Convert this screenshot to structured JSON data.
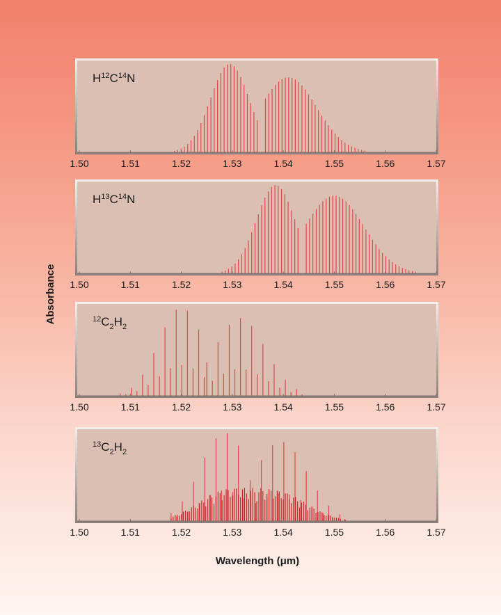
{
  "figure": {
    "ylabel": "Absorbance",
    "xlabel": "Wavelength (μm)",
    "panel_bg": "#dbbfb3",
    "bar_color": "#e0454a",
    "dense_color": "#cc1c22"
  },
  "chart_data": [
    {
      "type": "bar",
      "label": {
        "main": "H",
        "sup1": "12",
        "mid": "C",
        "sup2": "14",
        "end": "N"
      },
      "xlim": [
        1.5,
        1.57
      ],
      "xticks": [
        "1.50",
        "1.51",
        "1.52",
        "1.53",
        "1.54",
        "1.55",
        "1.56",
        "1.57"
      ],
      "branches": [
        {
          "center": 1.5295,
          "sigma": 0.0038,
          "peak": 1.0,
          "from": 1.518,
          "to": 1.5355,
          "step": 0.00065
        },
        {
          "center": 1.541,
          "sigma": 0.0055,
          "peak": 0.85,
          "from": 1.5365,
          "to": 1.56,
          "step": 0.00065
        }
      ]
    },
    {
      "type": "bar",
      "label": {
        "main": "H",
        "sup1": "13",
        "mid": "C",
        "sup2": "14",
        "end": "N"
      },
      "xlim": [
        1.5,
        1.57
      ],
      "xticks": [
        "1.50",
        "1.51",
        "1.52",
        "1.53",
        "1.54",
        "1.55",
        "1.56",
        "1.57"
      ],
      "branches": [
        {
          "center": 1.5385,
          "sigma": 0.0038,
          "peak": 1.0,
          "from": 1.526,
          "to": 1.5435,
          "step": 0.00065
        },
        {
          "center": 1.55,
          "sigma": 0.0058,
          "peak": 0.88,
          "from": 1.5445,
          "to": 1.566,
          "step": 0.00065
        }
      ]
    },
    {
      "type": "bar",
      "label": {
        "sup0": "12",
        "main": "C",
        "sub1": "2",
        "mid": "H",
        "sub2": "2"
      },
      "xlim": [
        1.5,
        1.57
      ],
      "xticks": [
        "1.50",
        "1.51",
        "1.52",
        "1.53",
        "1.54",
        "1.55",
        "1.56",
        "1.57"
      ],
      "branches": [
        {
          "center": 1.52,
          "sigma": 0.0045,
          "peak": 1.0,
          "from": 1.508,
          "to": 1.5245,
          "step": 0.0011,
          "alt": 0.35
        },
        {
          "center": 1.5315,
          "sigma": 0.005,
          "peak": 0.88,
          "from": 1.525,
          "to": 1.544,
          "step": 0.0011,
          "alt": 0.35
        }
      ]
    },
    {
      "type": "bar",
      "label": {
        "sup0": "13",
        "main": "C",
        "sub1": "2",
        "mid": "H",
        "sub2": "2"
      },
      "xlim": [
        1.5,
        1.57
      ],
      "xticks": [
        "1.50",
        "1.51",
        "1.52",
        "1.53",
        "1.54",
        "1.55",
        "1.56",
        "1.57"
      ],
      "dense": true,
      "branches": [
        {
          "center": 1.5285,
          "sigma": 0.0048,
          "peak": 1.0,
          "from": 1.518,
          "to": 1.533,
          "step": 0.0011,
          "alt": 0.35
        },
        {
          "center": 1.5395,
          "sigma": 0.0052,
          "peak": 0.9,
          "from": 1.5335,
          "to": 1.553,
          "step": 0.0011,
          "alt": 0.35
        }
      ]
    }
  ]
}
